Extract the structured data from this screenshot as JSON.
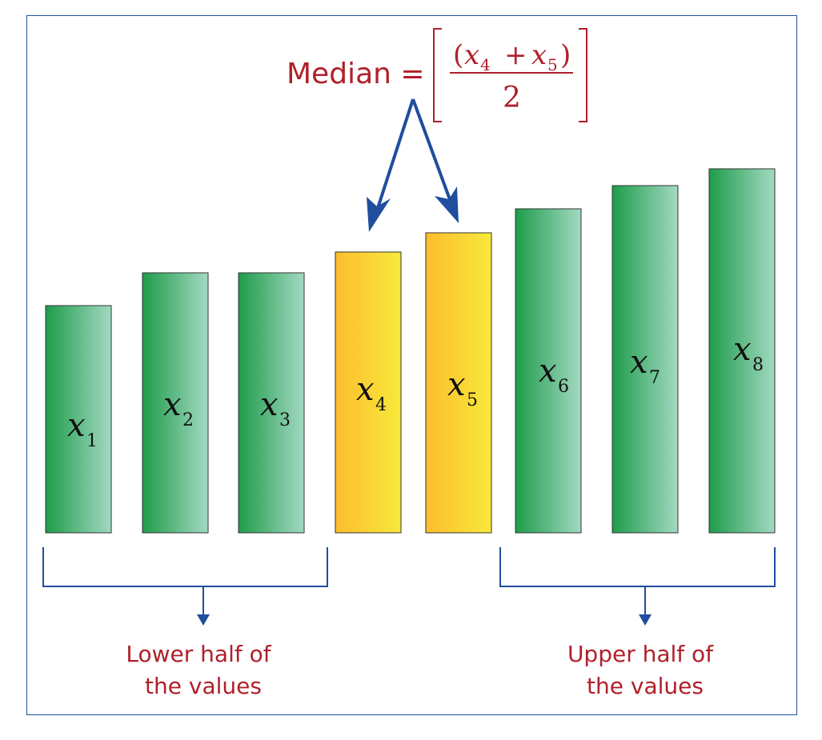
{
  "formula": {
    "label": "Median =",
    "numerator": {
      "open": "(",
      "a_var": "x",
      "a_sub": "4",
      "plus": "+",
      "b_var": "x",
      "b_sub": "5",
      "close": ")"
    },
    "denominator": "2"
  },
  "bars": [
    {
      "var": "x",
      "sub": "1",
      "color": "green",
      "rank": 1
    },
    {
      "var": "x",
      "sub": "2",
      "color": "green",
      "rank": 2
    },
    {
      "var": "x",
      "sub": "3",
      "color": "green",
      "rank": 3
    },
    {
      "var": "x",
      "sub": "4",
      "color": "yellow",
      "rank": 4
    },
    {
      "var": "x",
      "sub": "5",
      "color": "yellow",
      "rank": 5
    },
    {
      "var": "x",
      "sub": "6",
      "color": "green",
      "rank": 6
    },
    {
      "var": "x",
      "sub": "7",
      "color": "green",
      "rank": 7
    },
    {
      "var": "x",
      "sub": "8",
      "color": "green",
      "rank": 8
    }
  ],
  "groups": {
    "lower": {
      "line1": "Lower half of",
      "line2": "the values"
    },
    "upper": {
      "line1": "Upper half of",
      "line2": "the values"
    }
  },
  "colors": {
    "frame": "#1f4e9e",
    "arrow": "#1f4e9e",
    "text_red": "#b0202a",
    "green_dark": "#1e9c4a",
    "green_light": "#a3d9c2",
    "yellow_dark": "#fdbd2e",
    "yellow_light": "#f7e93b"
  }
}
